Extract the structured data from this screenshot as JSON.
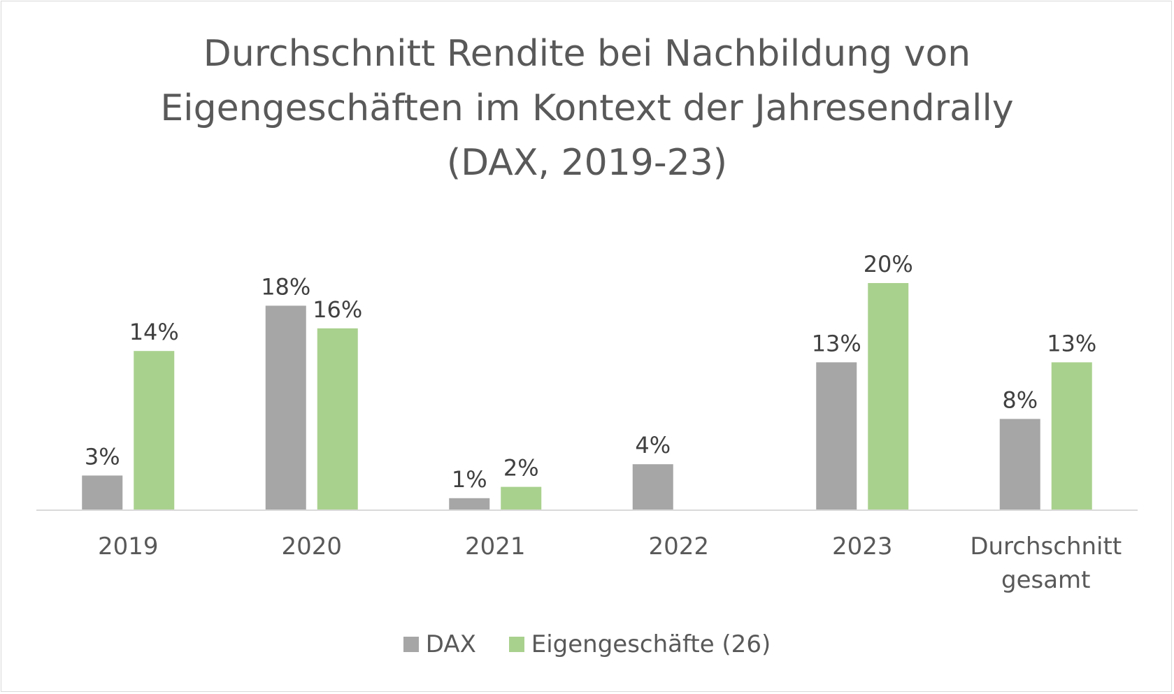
{
  "chart_data": {
    "type": "bar",
    "title_lines": [
      "Durchschnitt Rendite bei Nachbildung von",
      "Eigengeschäften im Kontext der Jahresendrally",
      "(DAX, 2019-23)"
    ],
    "categories": [
      [
        "2019"
      ],
      [
        "2020"
      ],
      [
        "2021"
      ],
      [
        "2022"
      ],
      [
        "2023"
      ],
      [
        "Durchschnitt",
        "gesamt"
      ]
    ],
    "series": [
      {
        "name": "DAX",
        "color": "#a6a6a6",
        "values": [
          3,
          18,
          1,
          4,
          13,
          8
        ],
        "labels": [
          "3%",
          "18%",
          "1%",
          "4%",
          "13%",
          "8%"
        ]
      },
      {
        "name": "Eigengeschäfte (26)",
        "color": "#a9d18e",
        "values": [
          14,
          16,
          2,
          null,
          20,
          13
        ],
        "labels": [
          "14%",
          "16%",
          "2%",
          null,
          "20%",
          "13%"
        ]
      }
    ],
    "ylim": [
      0,
      21
    ],
    "grid": false,
    "legend_position": "bottom-center",
    "xlabel": "",
    "ylabel": ""
  }
}
